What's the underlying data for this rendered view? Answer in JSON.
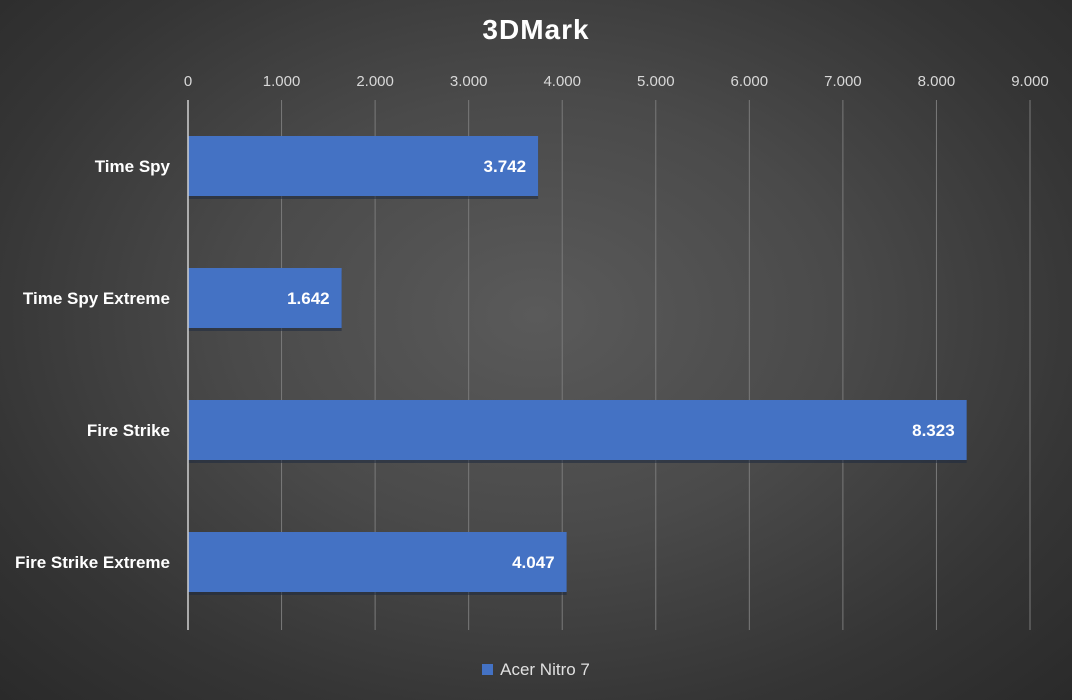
{
  "chart_data": {
    "type": "bar",
    "orientation": "horizontal",
    "title": "3DMark",
    "categories": [
      "Time Spy",
      "Time Spy Extreme",
      "Fire Strike",
      "Fire Strike Extreme"
    ],
    "series": [
      {
        "name": "Acer Nitro 7",
        "values": [
          3742,
          1642,
          8323,
          4047
        ],
        "data_labels": [
          "3.742",
          "1.642",
          "8.323",
          "4.047"
        ],
        "color": "#4472c4"
      }
    ],
    "xlim": [
      0,
      9000
    ],
    "x_ticks": [
      0,
      1000,
      2000,
      3000,
      4000,
      5000,
      6000,
      7000,
      8000,
      9000
    ],
    "x_tick_labels": [
      "0",
      "1.000",
      "2.000",
      "3.000",
      "4.000",
      "5.000",
      "6.000",
      "7.000",
      "8.000",
      "9.000"
    ],
    "x_axis_position": "top",
    "grid": true,
    "legend_position": "bottom"
  }
}
